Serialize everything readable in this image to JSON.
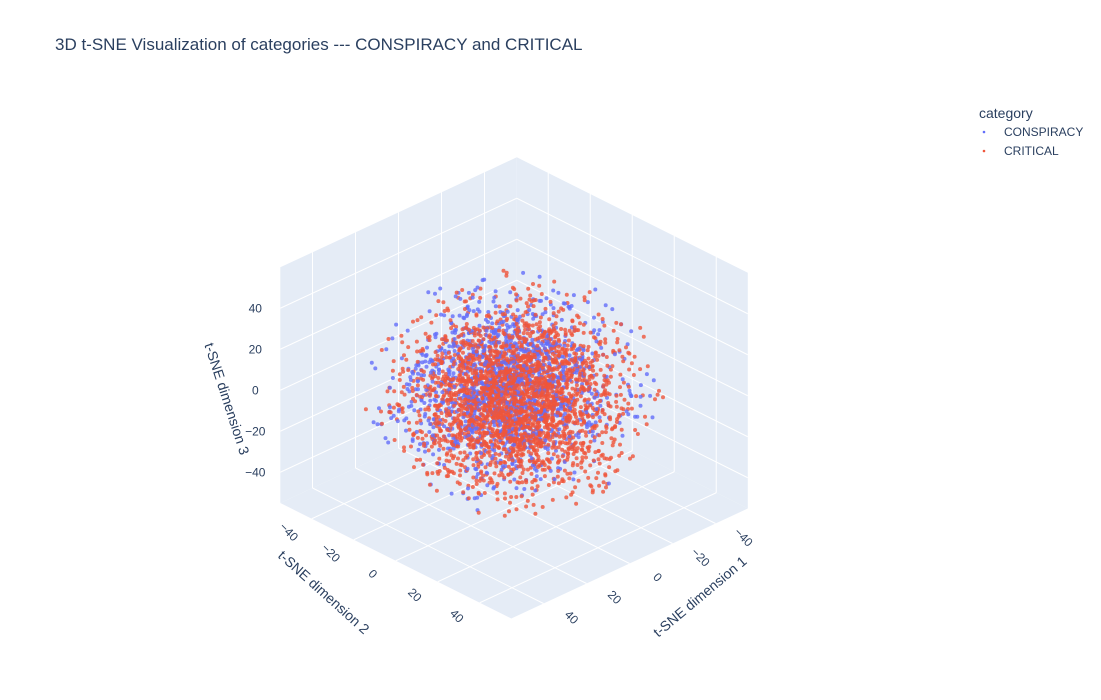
{
  "chart_data": {
    "type": "scatter",
    "title": "3D t-SNE Visualization of categories --- CONSPIRACY and CRITICAL",
    "legend": {
      "title": "category",
      "position": "top-right"
    },
    "axes": {
      "x": {
        "label": "t-SNE dimension 1",
        "ticks": [
          "-40",
          "-20",
          "0",
          "20",
          "40"
        ],
        "range": [
          -55,
          55
        ]
      },
      "y": {
        "label": "t-SNE dimension 2",
        "ticks": [
          "-40",
          "-20",
          "0",
          "20",
          "40"
        ],
        "range": [
          -55,
          55
        ]
      },
      "z": {
        "label": "t-SNE dimension 3",
        "ticks": [
          "-40",
          "-20",
          "0",
          "20",
          "40"
        ],
        "range": [
          -55,
          60
        ]
      }
    },
    "series": [
      {
        "name": "CONSPIRACY",
        "color": "#636efa",
        "count": 1400,
        "center": [
          -5,
          -8,
          -3
        ],
        "spread": [
          18,
          18,
          18
        ]
      },
      {
        "name": "CRITICAL",
        "color": "#ef553b",
        "count": 2600,
        "center": [
          4,
          5,
          2
        ],
        "spread": [
          18,
          18,
          18
        ]
      }
    ],
    "grid": true
  }
}
